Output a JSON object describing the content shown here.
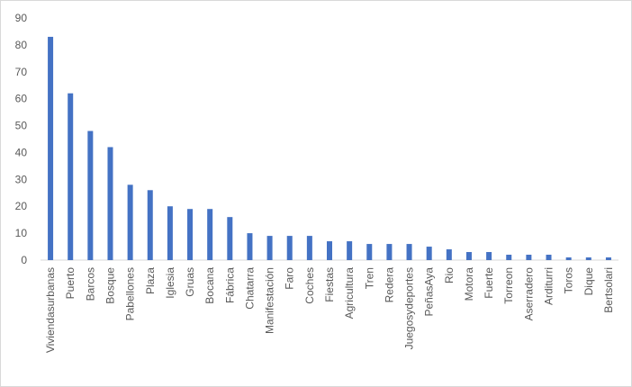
{
  "chart_data": {
    "type": "bar",
    "categories": [
      "Viviendasurbanas",
      "Puerto",
      "Barcos",
      "Bosque",
      "Pabellones",
      "Plaza",
      "Iglesia",
      "Gruas",
      "Bocana",
      "Fábrica",
      "Chatarra",
      "Manifestación",
      "Faro",
      "Coches",
      "Fiestas",
      "Agricultura",
      "Tren",
      "Redera",
      "Juegosydeportes",
      "PeñasAya",
      "Rio",
      "Motora",
      "Fuerte",
      "Torreon",
      "Aserradero",
      "Arditurri",
      "Toros",
      "Dique",
      "Bertsolari"
    ],
    "values": [
      83,
      62,
      48,
      42,
      28,
      26,
      20,
      19,
      19,
      16,
      10,
      9,
      9,
      9,
      7,
      7,
      6,
      6,
      6,
      5,
      4,
      3,
      3,
      2,
      2,
      2,
      1,
      1,
      1
    ],
    "color": "#4472c4",
    "ylim": [
      0,
      90
    ],
    "yticks": [
      0,
      10,
      20,
      30,
      40,
      50,
      60,
      70,
      80,
      90
    ],
    "grid": false
  }
}
